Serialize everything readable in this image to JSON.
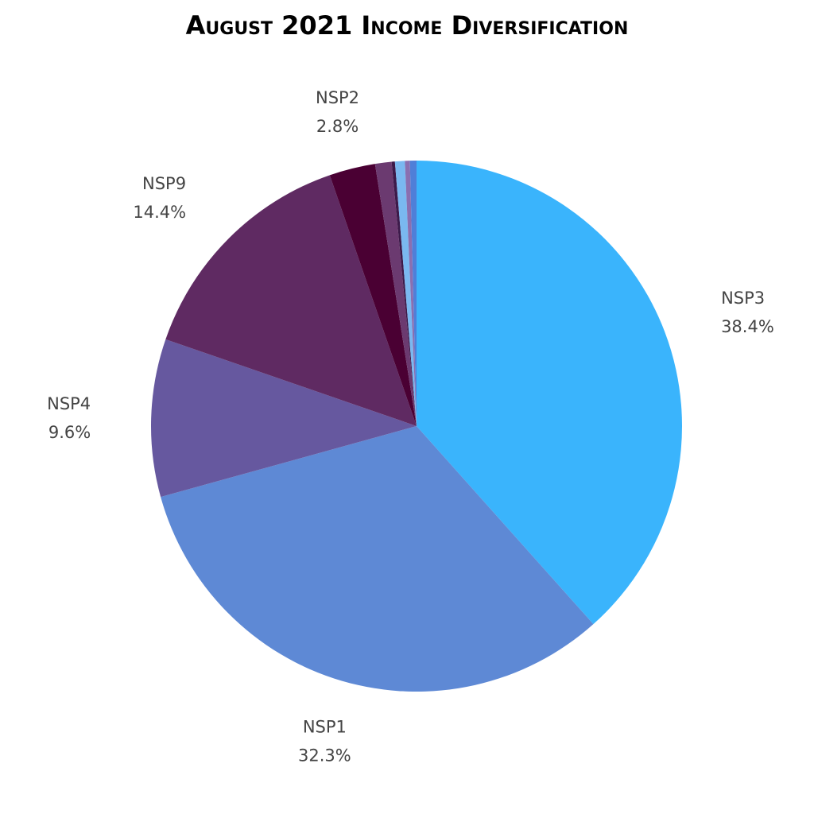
{
  "chart_data": {
    "type": "pie",
    "title": "August 2021 Income Diversification",
    "categories": [
      "NSP3",
      "NSP1",
      "NSP4",
      "NSP9",
      "NSP2",
      null,
      null,
      null,
      null,
      null
    ],
    "values": [
      38.4,
      32.3,
      9.6,
      14.4,
      2.8,
      1.0,
      0.2,
      0.6,
      0.3,
      0.4
    ],
    "value_labels": [
      "38.4%",
      "32.3%",
      "9.6%",
      "14.4%",
      "2.8%",
      null,
      null,
      null,
      null,
      null
    ],
    "colors": [
      "#3ab4fc",
      "#5e89d5",
      "#66589f",
      "#5f2a62",
      "#4a0033",
      "#6b3a70",
      "#3d1a4a",
      "#7ab8f0",
      "#8a6fb0",
      "#4f7fd8"
    ]
  }
}
